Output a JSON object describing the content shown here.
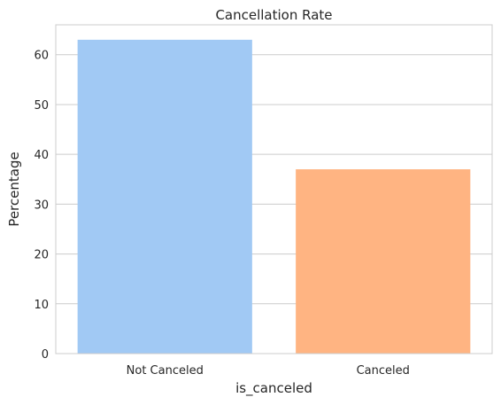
{
  "chart_data": {
    "type": "bar",
    "title": "Cancellation Rate",
    "xlabel": "is_canceled",
    "ylabel": "Percentage",
    "categories": [
      "Not Canceled",
      "Canceled"
    ],
    "values": [
      63.0,
      37.0
    ],
    "colors": [
      "#a1c9f4",
      "#ffb482"
    ],
    "ylim": [
      0,
      66
    ],
    "yticks": [
      0,
      10,
      20,
      30,
      40,
      50,
      60
    ],
    "grid": true
  }
}
